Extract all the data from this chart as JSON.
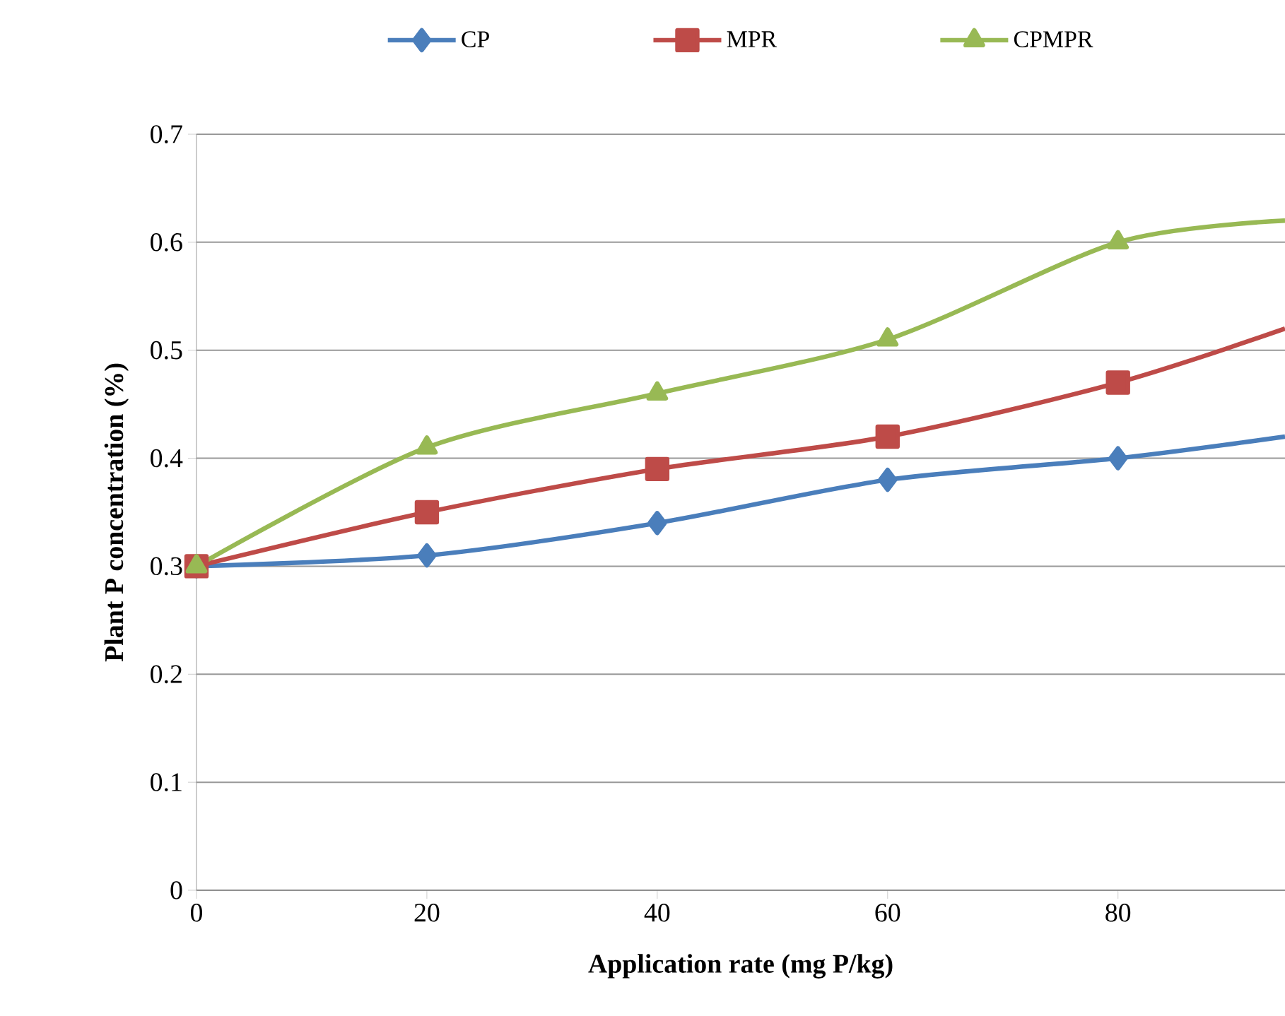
{
  "chart_data": {
    "type": "line",
    "xlabel": "Application rate (mg P/kg)",
    "ylabel": "Plant P concentration (%)",
    "xlim": [
      0,
      94.5
    ],
    "xticks": [
      0,
      20,
      40,
      60,
      80
    ],
    "ylim": [
      0,
      0.7
    ],
    "yticks": [
      0,
      0.1,
      0.2,
      0.3,
      0.4,
      0.5,
      0.6,
      0.7
    ],
    "grid": "y",
    "legend": "top",
    "line_style": "solid",
    "series": [
      {
        "name": "CP",
        "color": "#4a7ebb",
        "marker": "diamond",
        "x": [
          0,
          20,
          40,
          60,
          80,
          94.5
        ],
        "values": [
          0.3,
          0.31,
          0.34,
          0.38,
          0.4,
          0.42
        ]
      },
      {
        "name": "MPR",
        "color": "#be4b48",
        "marker": "square",
        "x": [
          0,
          20,
          40,
          60,
          80,
          94.5
        ],
        "values": [
          0.3,
          0.35,
          0.39,
          0.42,
          0.47,
          0.52
        ]
      },
      {
        "name": "CPMPR",
        "color": "#98b954",
        "marker": "triangle",
        "x": [
          0,
          20,
          40,
          60,
          80,
          94.5
        ],
        "values": [
          0.3,
          0.41,
          0.46,
          0.51,
          0.6,
          0.62
        ]
      }
    ]
  }
}
